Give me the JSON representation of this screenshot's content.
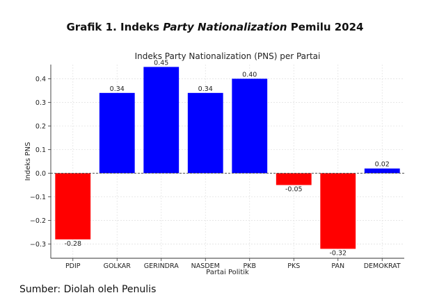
{
  "figure": {
    "heading_pre": "Grafik 1. Indeks ",
    "heading_em": "Party Nationalization",
    "heading_post": " Pemilu 2024",
    "source": "Sumber: Diolah oleh Penulis"
  },
  "chart_data": {
    "type": "bar",
    "title": "Indeks Party Nationalization (PNS) per Partai",
    "xlabel": "Partai Politik",
    "ylabel": "Indeks PNS",
    "categories": [
      "PDIP",
      "GOLKAR",
      "GERINDRA",
      "NASDEM",
      "PKB",
      "PKS",
      "PAN",
      "DEMOKRAT"
    ],
    "values": [
      -0.28,
      0.34,
      0.45,
      0.34,
      0.4,
      -0.05,
      -0.32,
      0.02
    ],
    "value_labels": [
      "-0.28",
      "0.34",
      "0.45",
      "0.34",
      "0.40",
      "-0.05",
      "-0.32",
      "0.02"
    ],
    "ylim": [
      -0.36,
      0.46
    ],
    "yticks": [
      -0.3,
      -0.2,
      -0.1,
      0.0,
      0.1,
      0.2,
      0.3,
      0.4
    ],
    "ytick_labels": [
      "−0.3",
      "−0.2",
      "−0.1",
      "0.0",
      "0.1",
      "0.2",
      "0.3",
      "0.4"
    ],
    "grid": true,
    "zero_line": "dashed",
    "colors": {
      "positive": "#0000ff",
      "negative": "#ff0000"
    }
  }
}
